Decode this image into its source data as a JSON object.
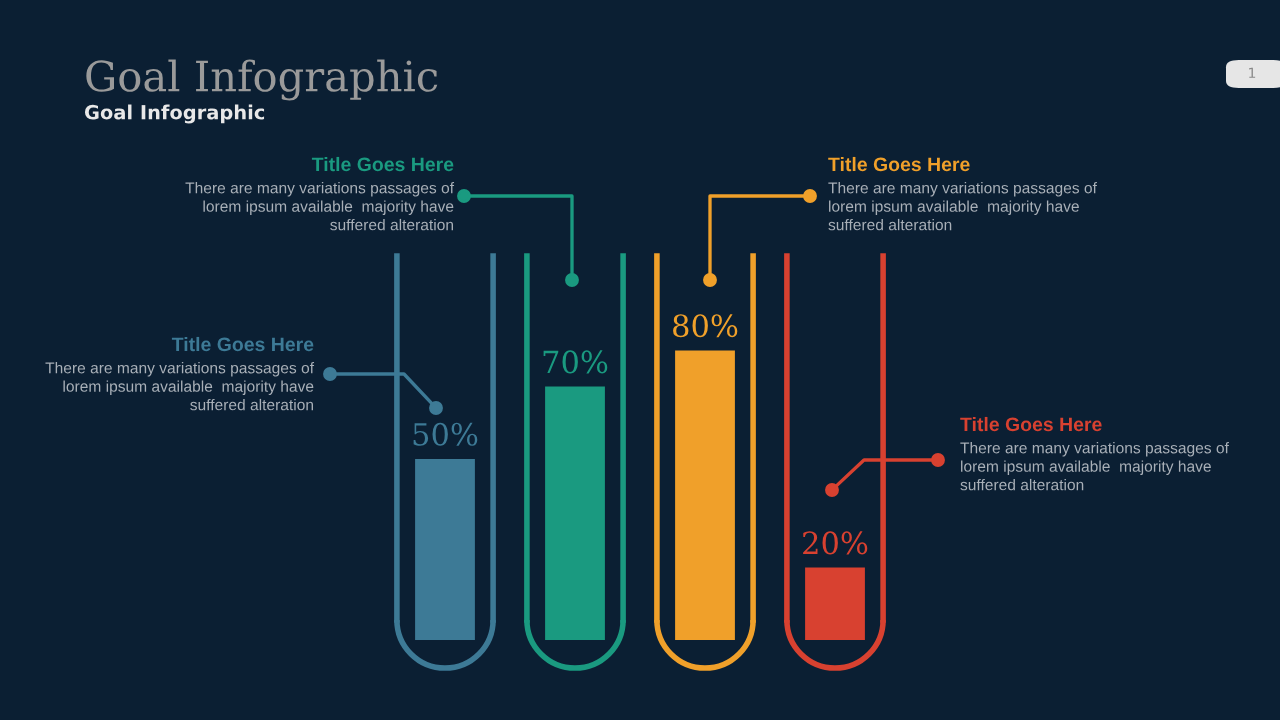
{
  "chart_data": {
    "type": "bar",
    "title": "Goal Infographic",
    "subtitle": "Goal Infographic",
    "categories": [
      null,
      null,
      null,
      null
    ],
    "values": [
      50,
      70,
      80,
      20
    ],
    "colors": [
      "#3d7a96",
      "#1a9a80",
      "#f0a02a",
      "#d84130"
    ],
    "value_labels": [
      "50%",
      "70%",
      "80%",
      "20%"
    ],
    "annotations": [
      "Title Goes Here",
      "There are many variations passages of\nlorem ipsum available  majority have\nsuffered alteration",
      "Title Goes Here",
      "There are many variations passages of\nlorem ipsum available  majority have\nsuffered alteration",
      "Title Goes Here",
      "There are many variations passages of\nlorem ipsum available  majority have\nsuffered alteration",
      "Title Goes Here",
      "There are many variations passages of\nlorem ipsum available  majority have\nsuffered alteration",
      "1"
    ],
    "grid": false,
    "tick_labels": false
  }
}
